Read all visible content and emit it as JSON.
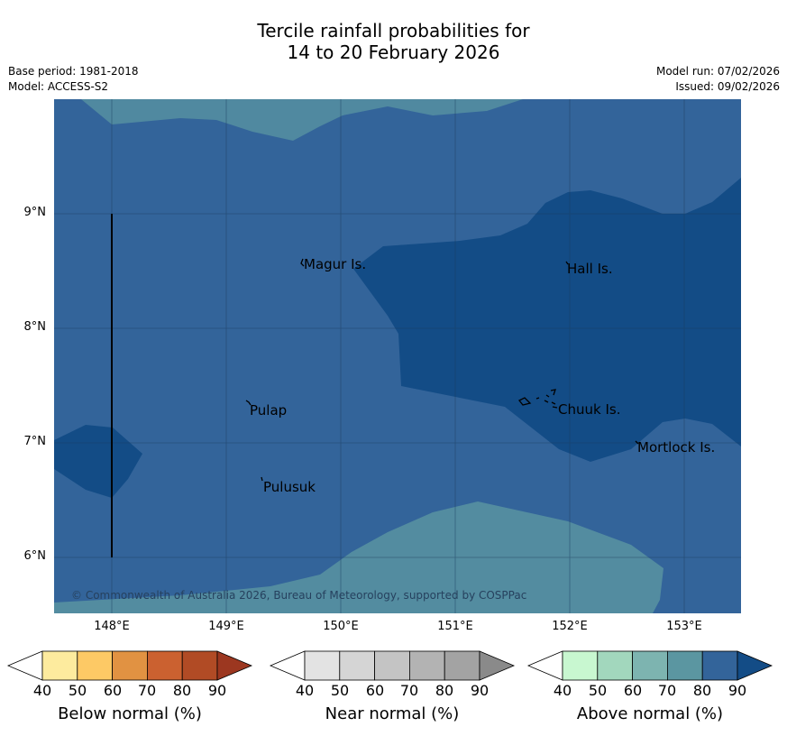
{
  "title": {
    "line1": "Tercile rainfall probabilities for",
    "line2": "14 to 20 February 2026"
  },
  "meta_left": {
    "base_period": "Base period: 1981-2018",
    "model": "Model: ACCESS-S2"
  },
  "meta_right": {
    "model_run": "Model run: 07/02/2026",
    "issued": "Issued: 09/02/2026"
  },
  "map": {
    "lat_labels": [
      "9°N",
      "8°N",
      "7°N",
      "6°N"
    ],
    "lon_labels": [
      "148°E",
      "149°E",
      "150°E",
      "151°E",
      "152°E",
      "153°E"
    ],
    "places": [
      {
        "name": "Magur Is."
      },
      {
        "name": "Hall Is."
      },
      {
        "name": "Pulap"
      },
      {
        "name": "Chuuk Is."
      },
      {
        "name": "Mortlock Is."
      },
      {
        "name": "Pulusuk"
      }
    ],
    "copyright": "© Commonwealth of Australia 2026, Bureau of Meteorology, supported by COSPPac",
    "colors": {
      "above_60_70": "#5b96a1",
      "above_70_80": "#33649a",
      "above_80_90": "#134c86",
      "land": "#000000"
    }
  },
  "colorbars": [
    {
      "label": "Below normal (%)",
      "ticks": [
        "40",
        "50",
        "60",
        "70",
        "80",
        "90"
      ],
      "colors": [
        "#ffffff",
        "#fdeb9e",
        "#fdc965",
        "#e19242",
        "#cb6130",
        "#b14b25",
        "#9c3720"
      ]
    },
    {
      "label": "Near normal (%)",
      "ticks": [
        "40",
        "50",
        "60",
        "70",
        "80",
        "90"
      ],
      "colors": [
        "#ffffff",
        "#e3e3e3",
        "#d5d5d5",
        "#c4c4c4",
        "#b3b3b3",
        "#a3a3a3",
        "#8a8a8a"
      ]
    },
    {
      "label": "Above normal (%)",
      "ticks": [
        "40",
        "50",
        "60",
        "70",
        "80",
        "90"
      ],
      "colors": [
        "#ffffff",
        "#c8f7d0",
        "#a2d7bd",
        "#7db4b0",
        "#5b96a1",
        "#33649a",
        "#134c86"
      ]
    }
  ]
}
